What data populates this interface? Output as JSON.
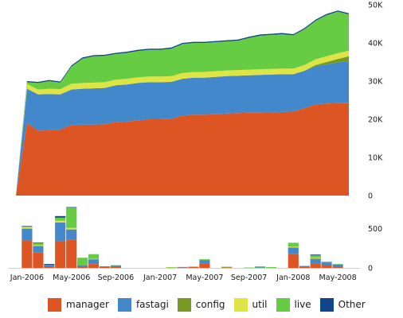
{
  "chart_data": [
    {
      "type": "area",
      "stacked": true,
      "x_dates": [
        "2005-12",
        "2006-01",
        "2006-02",
        "2006-03",
        "2006-04",
        "2006-05",
        "2006-06",
        "2006-07",
        "2006-08",
        "2006-09",
        "2006-10",
        "2006-11",
        "2006-12",
        "2007-01",
        "2007-02",
        "2007-03",
        "2007-04",
        "2007-05",
        "2007-06",
        "2007-07",
        "2007-08",
        "2007-09",
        "2007-10",
        "2007-11",
        "2007-12",
        "2008-01",
        "2008-02",
        "2008-03",
        "2008-04",
        "2008-05",
        "2008-06"
      ],
      "series": [
        {
          "name": "manager",
          "color": "#dd5522",
          "values": [
            0,
            19000,
            17000,
            17100,
            17300,
            18500,
            18600,
            18600,
            18700,
            19300,
            19400,
            19700,
            20000,
            20000,
            20100,
            21000,
            21200,
            21200,
            21300,
            21500,
            21600,
            21700,
            21700,
            21800,
            21900,
            22000,
            22900,
            23900,
            24100,
            24200,
            24200
          ]
        },
        {
          "name": "fastagi",
          "color": "#4488cc",
          "values": [
            0,
            9000,
            9500,
            9500,
            9200,
            9300,
            9400,
            9500,
            9500,
            9600,
            9700,
            9800,
            9700,
            9700,
            9700,
            9600,
            9700,
            9700,
            9800,
            9800,
            9800,
            9800,
            9900,
            9900,
            9900,
            9800,
            9800,
            10000,
            10300,
            10700,
            11000
          ]
        },
        {
          "name": "config",
          "color": "#779922",
          "values": [
            0,
            0,
            0,
            0,
            0,
            0,
            0,
            0,
            0,
            0,
            0,
            0,
            0,
            0,
            0,
            0,
            0,
            0,
            0,
            0,
            0,
            0,
            0,
            0,
            0,
            0,
            0,
            300,
            600,
            900,
            1300
          ]
        },
        {
          "name": "util",
          "color": "#dde444",
          "values": [
            0,
            1200,
            1300,
            1400,
            1400,
            1500,
            1500,
            1500,
            1500,
            1500,
            1500,
            1500,
            1500,
            1500,
            1500,
            1500,
            1500,
            1500,
            1500,
            1500,
            1500,
            1500,
            1500,
            1500,
            1500,
            1500,
            1500,
            1500,
            1500,
            1500,
            1500
          ]
        },
        {
          "name": "live",
          "color": "#66cc44",
          "values": [
            0,
            500,
            1700,
            2000,
            1700,
            4500,
            6400,
            6900,
            6900,
            6700,
            6800,
            6900,
            7000,
            7000,
            7200,
            7600,
            7600,
            7600,
            7600,
            7600,
            7700,
            8300,
            8800,
            8900,
            9000,
            8700,
            9400,
            10100,
            10800,
            10900,
            9500
          ]
        },
        {
          "name": "Other",
          "color": "#114488",
          "values": [
            0,
            300,
            300,
            300,
            300,
            300,
            300,
            300,
            300,
            300,
            300,
            300,
            300,
            300,
            300,
            300,
            300,
            300,
            300,
            300,
            300,
            300,
            300,
            300,
            300,
            300,
            300,
            300,
            300,
            300,
            300
          ]
        }
      ],
      "xlim": [
        "2005-12",
        "2008-06"
      ],
      "ylim": [
        0,
        50000
      ],
      "y_ticks": [
        0,
        10000,
        20000,
        30000,
        40000,
        50000
      ],
      "y_tick_labels": [
        "0",
        "10K",
        "20K",
        "30K",
        "40K",
        "50K"
      ],
      "grid": false
    },
    {
      "type": "bar",
      "stacked": true,
      "categories": [
        "2006-01",
        "2006-02",
        "2006-03",
        "2006-04",
        "2006-05",
        "2006-06",
        "2006-07",
        "2006-08",
        "2006-09",
        "2006-10",
        "2006-11",
        "2006-12",
        "2007-01",
        "2007-02",
        "2007-03",
        "2007-04",
        "2007-05",
        "2007-06",
        "2007-07",
        "2007-08",
        "2007-09",
        "2007-10",
        "2007-11",
        "2007-12",
        "2008-01",
        "2008-02",
        "2008-03",
        "2008-04",
        "2008-05"
      ],
      "series": [
        {
          "name": "manager",
          "color": "#dd5522",
          "values": [
            350,
            200,
            20,
            340,
            360,
            20,
            50,
            10,
            20,
            0,
            0,
            0,
            0,
            0,
            5,
            10,
            60,
            0,
            5,
            0,
            0,
            0,
            0,
            0,
            180,
            20,
            60,
            30,
            10
          ]
        },
        {
          "name": "fastagi",
          "color": "#4488cc",
          "values": [
            150,
            80,
            20,
            240,
            130,
            10,
            60,
            10,
            5,
            0,
            0,
            0,
            0,
            0,
            5,
            5,
            40,
            0,
            0,
            0,
            0,
            5,
            0,
            0,
            80,
            5,
            50,
            40,
            35
          ]
        },
        {
          "name": "config",
          "color": "#779922",
          "values": [
            0,
            0,
            0,
            0,
            0,
            0,
            0,
            0,
            0,
            0,
            0,
            0,
            0,
            0,
            0,
            0,
            0,
            0,
            0,
            0,
            0,
            0,
            0,
            0,
            0,
            0,
            10,
            0,
            0
          ]
        },
        {
          "name": "util",
          "color": "#dde444",
          "values": [
            20,
            10,
            0,
            20,
            20,
            0,
            5,
            0,
            0,
            0,
            0,
            0,
            0,
            5,
            5,
            0,
            0,
            0,
            0,
            0,
            0,
            0,
            0,
            0,
            10,
            0,
            10,
            0,
            0
          ]
        },
        {
          "name": "live",
          "color": "#66cc44",
          "values": [
            10,
            30,
            0,
            40,
            260,
            100,
            60,
            0,
            10,
            0,
            0,
            0,
            0,
            5,
            0,
            0,
            10,
            0,
            10,
            0,
            5,
            15,
            10,
            0,
            50,
            0,
            30,
            10,
            5
          ]
        },
        {
          "name": "Other",
          "color": "#114488",
          "values": [
            5,
            5,
            10,
            20,
            5,
            0,
            0,
            0,
            0,
            0,
            0,
            0,
            0,
            0,
            0,
            0,
            0,
            0,
            0,
            0,
            0,
            0,
            0,
            0,
            0,
            0,
            10,
            0,
            0
          ]
        }
      ],
      "ylim": [
        0,
        800
      ],
      "y_ticks": [
        0,
        500
      ],
      "y_tick_labels": [
        "0",
        "500"
      ],
      "x_tick_dates": [
        "2006-01",
        "2006-05",
        "2006-09",
        "2007-01",
        "2007-05",
        "2007-09",
        "2008-01",
        "2008-05"
      ],
      "x_tick_labels": [
        "Jan-2006",
        "May-2006",
        "Sep-2006",
        "Jan-2007",
        "May-2007",
        "Sep-2007",
        "Jan-2008",
        "May-2008"
      ],
      "grid": false
    }
  ],
  "legend": {
    "placement": "bottom",
    "items": [
      {
        "label": "manager",
        "color": "#dd5522"
      },
      {
        "label": "fastagi",
        "color": "#4488cc"
      },
      {
        "label": "config",
        "color": "#779922"
      },
      {
        "label": "util",
        "color": "#dde444"
      },
      {
        "label": "live",
        "color": "#66cc44"
      },
      {
        "label": "Other",
        "color": "#114488"
      }
    ]
  }
}
